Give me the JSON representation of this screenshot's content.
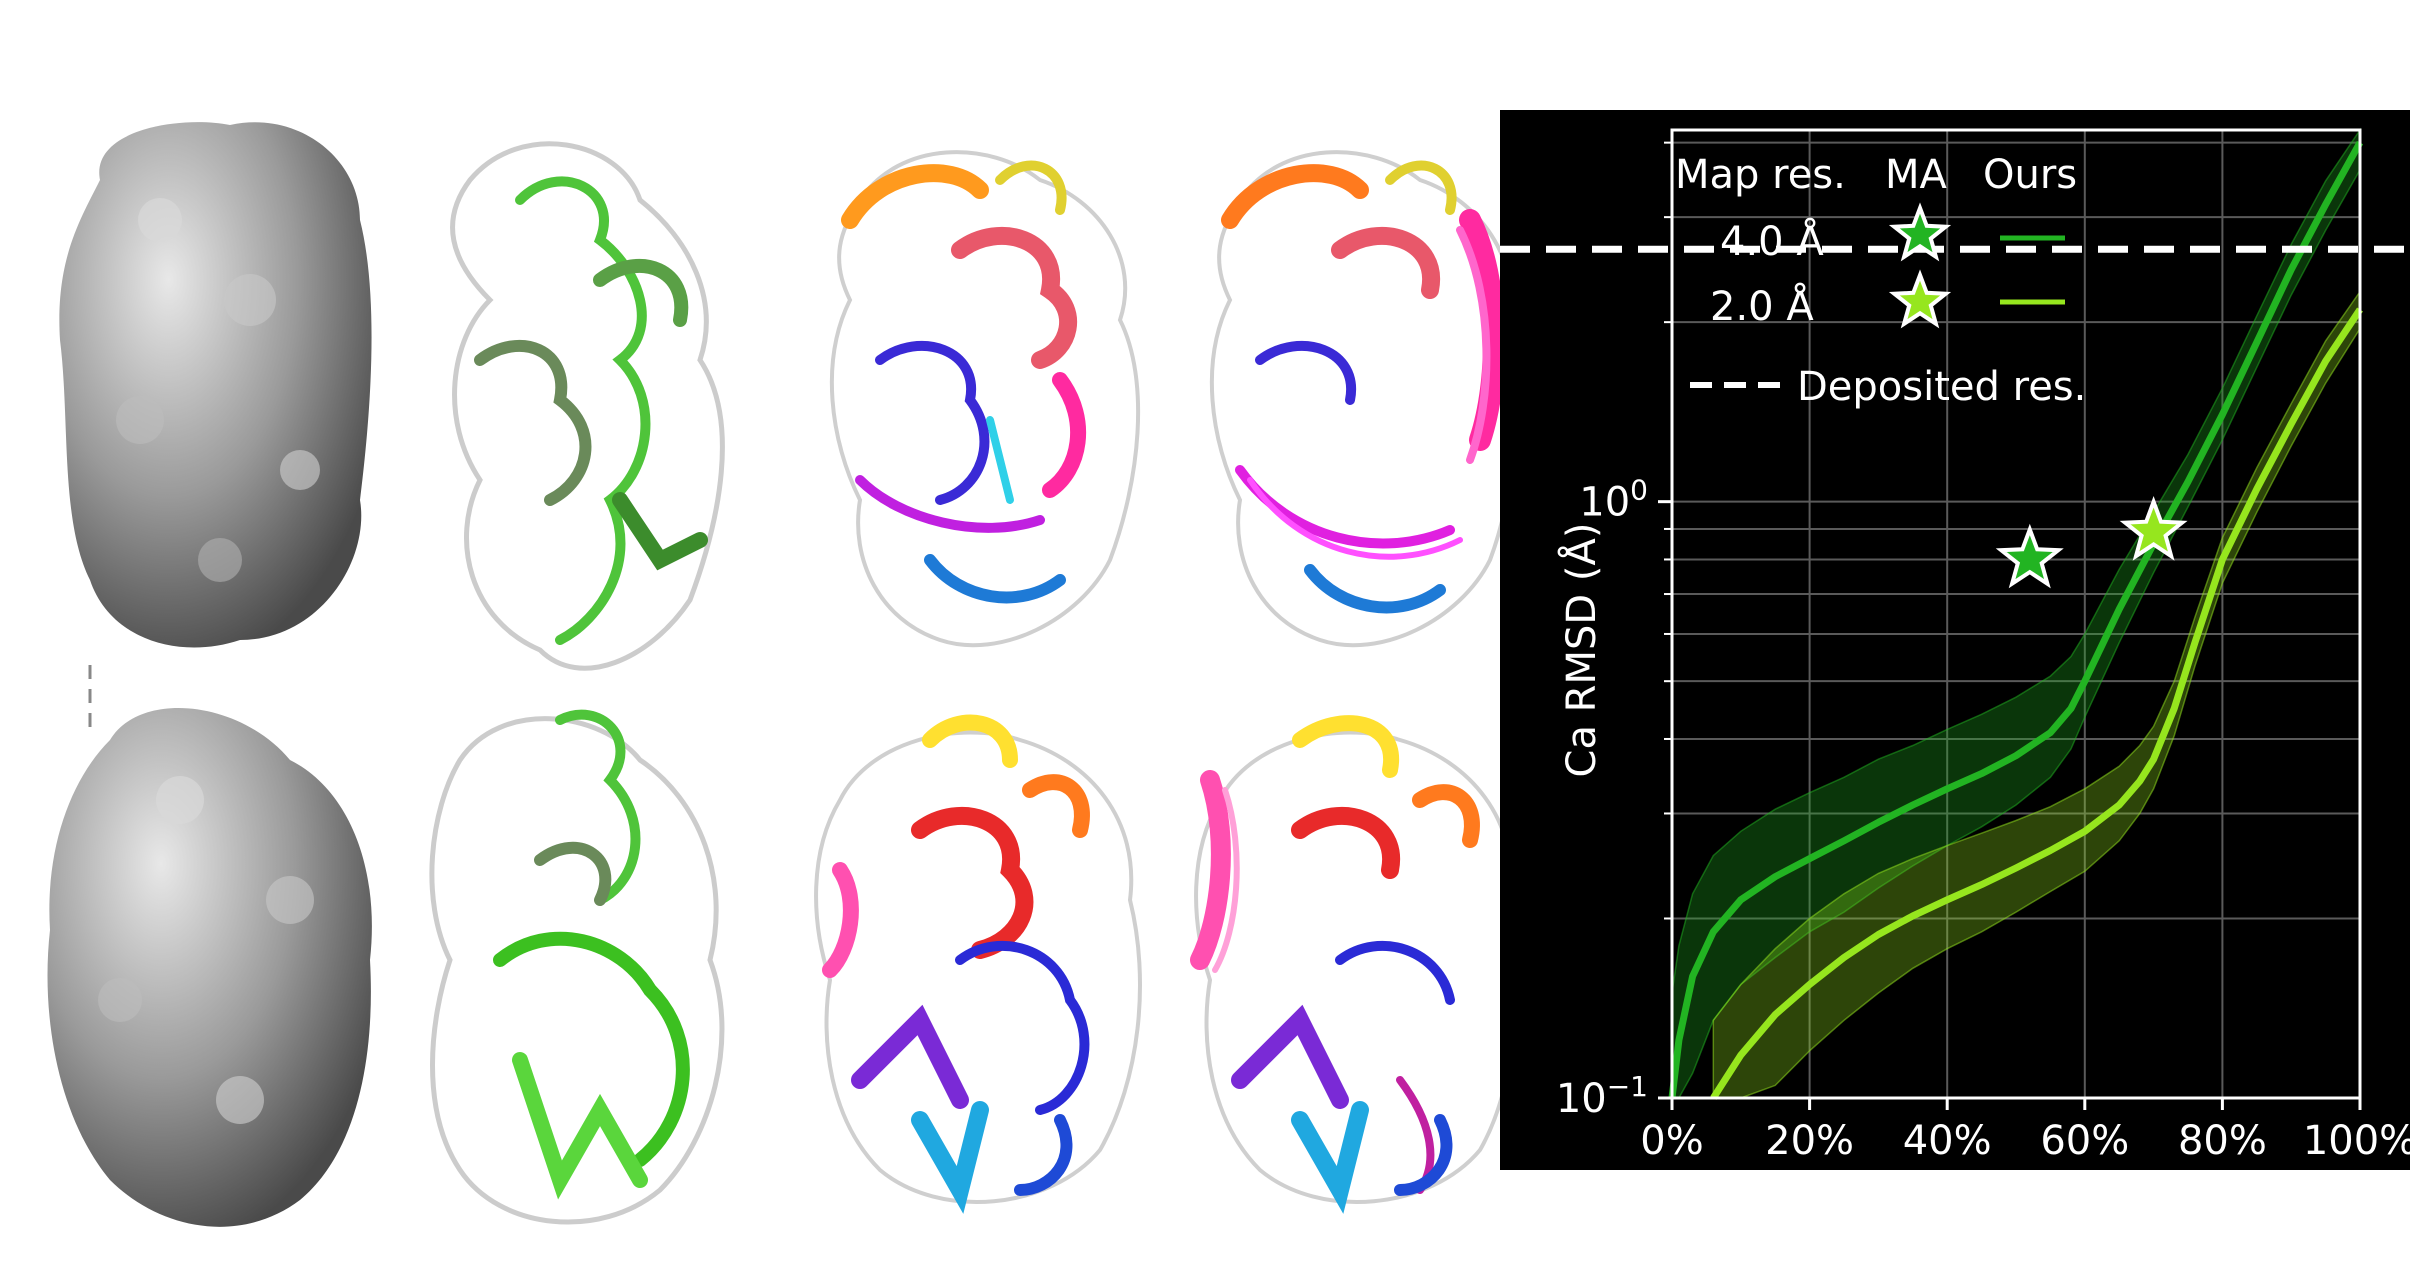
{
  "colors": {
    "background": "#000000",
    "series_4A": "#22b422",
    "series_2A": "#96e61e",
    "deposited_line": "#ffffff",
    "grid": "#5a5a5a"
  },
  "structures": {
    "panels": [
      {
        "row": "top",
        "style": "surface-density"
      },
      {
        "row": "top",
        "style": "cartoon-green"
      },
      {
        "row": "top",
        "style": "cartoon-rainbow"
      },
      {
        "row": "top",
        "style": "cartoon-ensemble"
      },
      {
        "row": "bottom",
        "style": "surface-density"
      },
      {
        "row": "bottom",
        "style": "cartoon-green"
      },
      {
        "row": "bottom",
        "style": "cartoon-rainbow"
      },
      {
        "row": "bottom",
        "style": "cartoon-ensemble"
      }
    ]
  },
  "chart_data": {
    "type": "line",
    "ylabel": "Ca RMSD (Å)",
    "xlabel": "",
    "x_ticks": [
      "0%",
      "20%",
      "40%",
      "60%",
      "80%",
      "100%"
    ],
    "xlim": [
      0,
      100
    ],
    "y_scale": "log",
    "ylim": [
      0.1,
      4.2
    ],
    "y_tick_labels": [
      {
        "value": 1.0,
        "label": "10^0"
      },
      {
        "value": 0.1,
        "label": "10^−1"
      }
    ],
    "grid": true,
    "legend": {
      "position": "top-left",
      "header": [
        "Map res.",
        "MA",
        "Ours"
      ],
      "rows": [
        {
          "label": "4.0 Å",
          "series": "4.0"
        },
        {
          "label": "2.0 Å",
          "series": "2.0"
        }
      ],
      "deposited_label": "Deposited res."
    },
    "deposited_resolution": 2.65,
    "series": [
      {
        "name": "4.0 Å",
        "x": [
          0,
          1,
          3,
          6,
          10,
          15,
          20,
          25,
          30,
          35,
          40,
          45,
          50,
          55,
          58,
          60,
          65,
          70,
          75,
          80,
          85,
          90,
          95,
          100
        ],
        "y": [
          0.1,
          0.125,
          0.16,
          0.19,
          0.215,
          0.235,
          0.252,
          0.27,
          0.29,
          0.31,
          0.33,
          0.35,
          0.375,
          0.41,
          0.45,
          0.5,
          0.66,
          0.85,
          1.08,
          1.4,
          1.85,
          2.45,
          3.15,
          4.0
        ],
        "y_lower": [
          0.07,
          0.085,
          0.11,
          0.135,
          0.155,
          0.172,
          0.19,
          0.205,
          0.225,
          0.245,
          0.265,
          0.285,
          0.31,
          0.345,
          0.385,
          0.435,
          0.58,
          0.76,
          0.98,
          1.27,
          1.68,
          2.22,
          2.85,
          3.6
        ],
        "y_upper": [
          0.15,
          0.18,
          0.22,
          0.255,
          0.28,
          0.305,
          0.325,
          0.345,
          0.37,
          0.39,
          0.415,
          0.44,
          0.47,
          0.51,
          0.55,
          0.6,
          0.77,
          0.96,
          1.2,
          1.55,
          2.05,
          2.7,
          3.45,
          4.4
        ]
      },
      {
        "name": "2.0 Å",
        "x": [
          6,
          10,
          15,
          20,
          25,
          30,
          35,
          40,
          45,
          50,
          55,
          60,
          65,
          68,
          70,
          73,
          76,
          80,
          85,
          90,
          95,
          100
        ],
        "y": [
          0.1,
          0.118,
          0.138,
          0.155,
          0.172,
          0.188,
          0.202,
          0.215,
          0.228,
          0.243,
          0.26,
          0.28,
          0.31,
          0.34,
          0.37,
          0.45,
          0.58,
          0.8,
          1.05,
          1.35,
          1.72,
          2.1
        ],
        "y_lower": [
          0.072,
          0.088,
          0.105,
          0.12,
          0.135,
          0.15,
          0.165,
          0.178,
          0.19,
          0.205,
          0.222,
          0.24,
          0.27,
          0.3,
          0.33,
          0.405,
          0.53,
          0.73,
          0.96,
          1.24,
          1.58,
          1.95
        ],
        "y_upper": [
          0.135,
          0.155,
          0.178,
          0.2,
          0.22,
          0.238,
          0.252,
          0.265,
          0.278,
          0.292,
          0.308,
          0.33,
          0.36,
          0.39,
          0.42,
          0.5,
          0.64,
          0.87,
          1.14,
          1.46,
          1.86,
          2.25
        ]
      }
    ],
    "ma_points": [
      {
        "series": "4.0 Å",
        "x": 52,
        "y": 0.8
      },
      {
        "series": "2.0 Å",
        "x": 70,
        "y": 0.89
      }
    ]
  }
}
